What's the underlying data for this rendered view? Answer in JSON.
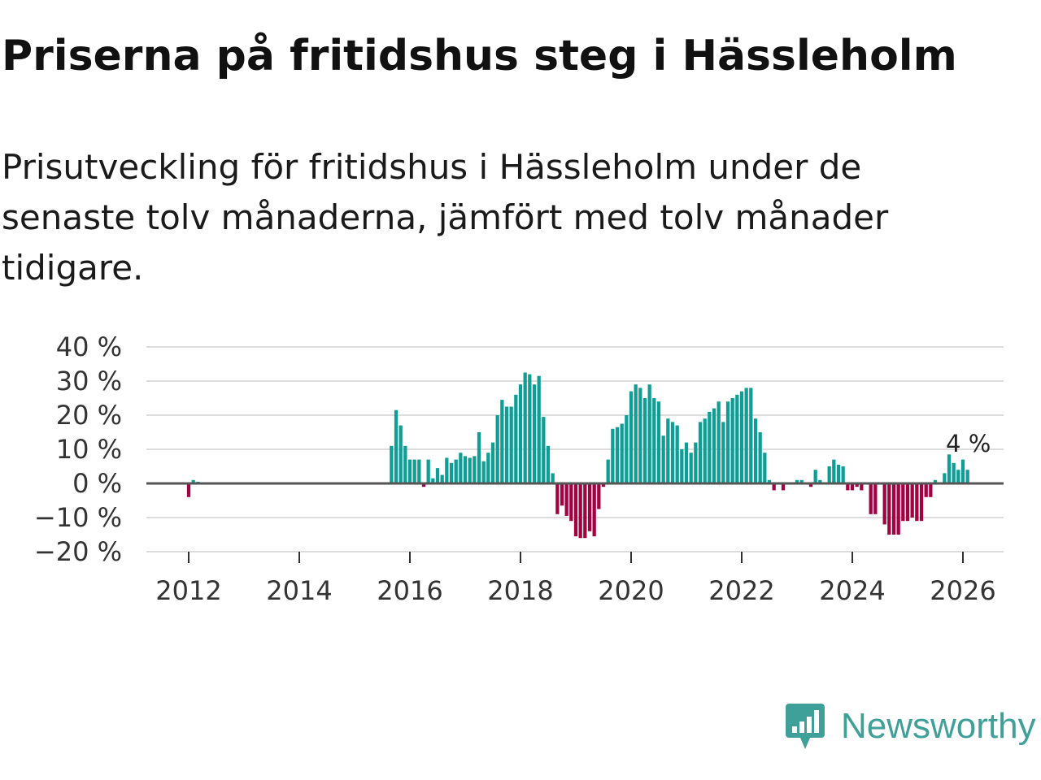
{
  "title": "Priserna på fritidshus steg i Hässleholm",
  "subtitle": "Prisutveckling för fritidshus i Hässleholm under de senaste tolv månaderna, jämfört med tolv månader tidigare.",
  "brand": {
    "name": "Newsworthy",
    "icon": "newsworthy-logo-icon",
    "color": "#3f9f99"
  },
  "colors": {
    "positive": "#0f9e96",
    "negative": "#a0033f",
    "grid": "#dcdcdc",
    "zero_line": "#555555"
  },
  "chart_data": {
    "type": "bar",
    "x_start": "2011-01",
    "interval": "month",
    "y_unit": "%",
    "ylim": [
      -20,
      40
    ],
    "y_ticks": [
      40,
      30,
      20,
      10,
      0,
      -10,
      -20
    ],
    "y_tick_labels": [
      "40 %",
      "30 %",
      "20 %",
      "10 %",
      "0 %",
      "−10 %",
      "−20 %"
    ],
    "x_ticks": [
      2012,
      2014,
      2016,
      2018,
      2020,
      2022,
      2024,
      2026
    ],
    "x_tick_labels": [
      "2012",
      "2014",
      "2016",
      "2018",
      "2020",
      "2022",
      "2024",
      "2026"
    ],
    "annotation": {
      "text": "4 %",
      "target": "last"
    },
    "values": [
      null,
      null,
      null,
      null,
      null,
      null,
      null,
      null,
      null,
      null,
      null,
      null,
      null,
      null,
      null,
      null,
      null,
      null,
      null,
      null,
      null,
      null,
      null,
      null,
      null,
      null,
      null,
      null,
      null,
      null,
      null,
      null,
      null,
      null,
      null,
      null,
      null,
      null,
      null,
      null,
      null,
      null,
      null,
      null,
      null,
      null,
      null,
      null,
      null,
      null,
      null,
      null,
      null,
      null,
      null,
      null,
      null,
      null,
      null,
      null,
      null,
      null,
      null,
      null,
      null,
      null,
      null,
      null,
      null,
      null,
      null,
      null,
      null,
      null,
      null,
      null,
      null,
      null,
      null,
      null,
      null,
      null,
      null,
      null,
      null,
      null,
      null,
      null,
      null,
      null,
      null,
      null,
      null,
      null,
      null,
      null,
      null,
      null,
      null,
      null,
      null,
      null,
      null,
      null,
      null,
      null,
      null,
      null,
      null,
      null,
      null,
      null,
      null,
      null,
      null,
      null,
      null,
      null,
      null,
      null,
      null,
      null,
      null,
      null,
      null,
      null,
      null,
      null,
      null,
      null,
      null,
      null,
      null,
      null,
      null,
      null,
      null,
      null,
      null,
      null,
      null,
      null,
      null,
      null,
      null,
      null,
      null,
      null,
      null,
      null,
      null,
      null,
      null,
      null,
      null,
      null,
      null,
      null,
      null,
      null,
      null,
      null,
      null,
      null,
      null,
      null,
      null,
      null,
      null,
      null,
      null,
      null,
      null,
      null,
      null,
      null,
      null,
      null,
      null,
      null,
      null,
      null,
      null,
      null,
      null,
      null,
      null,
      null,
      null,
      null,
      null,
      null,
      null,
      null,
      null,
      null,
      null,
      null,
      null,
      null,
      null,
      null,
      null,
      null,
      null,
      null,
      null,
      null,
      null,
      null,
      null,
      null,
      null,
      null,
      null,
      null,
      null,
      null,
      null,
      null,
      null,
      null,
      null,
      null,
      null,
      null,
      null,
      null,
      null,
      null,
      null,
      null,
      null,
      null,
      null,
      null,
      null,
      null,
      null,
      null,
      null,
      null,
      null,
      null,
      null,
      null,
      null,
      null,
      null,
      null,
      null,
      null,
      null,
      null,
      null,
      null,
      null,
      null,
      null,
      null,
      null,
      null,
      null,
      null,
      null,
      null,
      null,
      null,
      null,
      null,
      null,
      null,
      null,
      null,
      null,
      null,
      null,
      null,
      null,
      null,
      null,
      null,
      null,
      null,
      null,
      null,
      null,
      null,
      null,
      null,
      null,
      null,
      null,
      null,
      null,
      null,
      null,
      null,
      null,
      null,
      null,
      null,
      null,
      null,
      null,
      null,
      null,
      null,
      null,
      null,
      null,
      null,
      null,
      null,
      null,
      null,
      null,
      null,
      null,
      null,
      null,
      null,
      null,
      null,
      null,
      null,
      null,
      null,
      null,
      null,
      null,
      null,
      null,
      null,
      null,
      null,
      null,
      null,
      null,
      null,
      null,
      null,
      null,
      null,
      null,
      null,
      null,
      null
    ]
  }
}
